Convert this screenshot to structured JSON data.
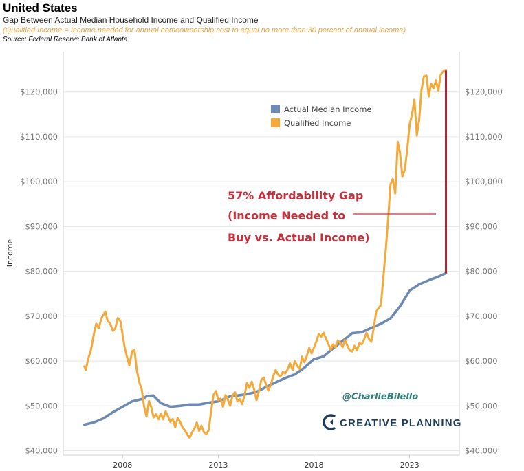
{
  "header": {
    "title": "United States",
    "subtitle": "Gap Between Actual Median Household Income and Qualified Income",
    "note": "(Qualified Income = Income needed for annual homeownership cost to equal no more than 30 percent of annual income)",
    "source": "Source: Federal Reserve Bank of Atlanta"
  },
  "annotation": {
    "line1": "57% Affordability Gap",
    "line2": "(Income Needed to",
    "line3": "Buy vs. Actual Income)"
  },
  "watermark": {
    "handle": "@CharlieBilello",
    "brand": "CREATIVE PLANNING"
  },
  "colors": {
    "median": "#6d8bb3",
    "qualified": "#f4a93c",
    "gap": "#b3202e",
    "annotation": "#c8303c"
  },
  "chart_data": {
    "type": "line",
    "ylabel": "Income",
    "ylim": [
      39000,
      129000
    ],
    "xlim": [
      2004.9,
      2025.6
    ],
    "y_ticks": [
      40000,
      50000,
      60000,
      70000,
      80000,
      90000,
      100000,
      110000,
      120000
    ],
    "y_tick_labels": [
      "$40,000",
      "$50,000",
      "$60,000",
      "$70,000",
      "$80,000",
      "$90,000",
      "$100,000",
      "$110,000",
      "$120,000"
    ],
    "x_ticks": [
      2008,
      2013,
      2018,
      2023
    ],
    "x_tick_labels": [
      "2008",
      "2013",
      "2018",
      "2023"
    ],
    "legend": {
      "position": "top-right"
    },
    "gap_marker": {
      "x": 2024.9,
      "y_low": 79600,
      "y_high": 124800
    },
    "series": [
      {
        "name": "Actual Median Income",
        "color": "#6d8bb3",
        "points": [
          [
            2006.0,
            45800
          ],
          [
            2006.5,
            46300
          ],
          [
            2007.0,
            47200
          ],
          [
            2007.5,
            48600
          ],
          [
            2008.0,
            49800
          ],
          [
            2008.5,
            51000
          ],
          [
            2009.0,
            51500
          ],
          [
            2009.3,
            52200
          ],
          [
            2009.6,
            52300
          ],
          [
            2010.0,
            50600
          ],
          [
            2010.5,
            49800
          ],
          [
            2011.0,
            50000
          ],
          [
            2011.5,
            50300
          ],
          [
            2012.0,
            50300
          ],
          [
            2012.5,
            50700
          ],
          [
            2013.0,
            51000
          ],
          [
            2013.3,
            51500
          ],
          [
            2013.6,
            52100
          ],
          [
            2014.0,
            52300
          ],
          [
            2014.5,
            52600
          ],
          [
            2015.0,
            53100
          ],
          [
            2015.5,
            54200
          ],
          [
            2016.0,
            55200
          ],
          [
            2016.5,
            56200
          ],
          [
            2017.0,
            57000
          ],
          [
            2017.5,
            58500
          ],
          [
            2018.0,
            60400
          ],
          [
            2018.5,
            61000
          ],
          [
            2019.0,
            62800
          ],
          [
            2019.5,
            64500
          ],
          [
            2020.0,
            66200
          ],
          [
            2020.5,
            66400
          ],
          [
            2021.0,
            67400
          ],
          [
            2021.5,
            68300
          ],
          [
            2022.0,
            69500
          ],
          [
            2022.5,
            72200
          ],
          [
            2023.0,
            75700
          ],
          [
            2023.5,
            77100
          ],
          [
            2024.0,
            78000
          ],
          [
            2024.5,
            78800
          ],
          [
            2024.9,
            79600
          ]
        ]
      },
      {
        "name": "Qualified Income",
        "color": "#f4a93c",
        "points": [
          [
            2006.0,
            58800
          ],
          [
            2006.08,
            58000
          ],
          [
            2006.2,
            60500
          ],
          [
            2006.35,
            62500
          ],
          [
            2006.5,
            66000
          ],
          [
            2006.62,
            68300
          ],
          [
            2006.75,
            67300
          ],
          [
            2006.9,
            69600
          ],
          [
            2007.0,
            70300
          ],
          [
            2007.1,
            71000
          ],
          [
            2007.2,
            69200
          ],
          [
            2007.35,
            68300
          ],
          [
            2007.5,
            66700
          ],
          [
            2007.62,
            67300
          ],
          [
            2007.75,
            69600
          ],
          [
            2007.9,
            68700
          ],
          [
            2008.0,
            65800
          ],
          [
            2008.12,
            62800
          ],
          [
            2008.25,
            60600
          ],
          [
            2008.35,
            59000
          ],
          [
            2008.5,
            62200
          ],
          [
            2008.62,
            62500
          ],
          [
            2008.75,
            57800
          ],
          [
            2008.88,
            55200
          ],
          [
            2009.0,
            53700
          ],
          [
            2009.12,
            50000
          ],
          [
            2009.25,
            47600
          ],
          [
            2009.38,
            51100
          ],
          [
            2009.5,
            49700
          ],
          [
            2009.62,
            47400
          ],
          [
            2009.75,
            48100
          ],
          [
            2009.88,
            47000
          ],
          [
            2010.0,
            48300
          ],
          [
            2010.12,
            47000
          ],
          [
            2010.25,
            48800
          ],
          [
            2010.38,
            47600
          ],
          [
            2010.5,
            46400
          ],
          [
            2010.62,
            47100
          ],
          [
            2010.75,
            45200
          ],
          [
            2010.88,
            47300
          ],
          [
            2011.0,
            46500
          ],
          [
            2011.12,
            45300
          ],
          [
            2011.25,
            44600
          ],
          [
            2011.38,
            43600
          ],
          [
            2011.5,
            42900
          ],
          [
            2011.62,
            44000
          ],
          [
            2011.75,
            44900
          ],
          [
            2011.88,
            46300
          ],
          [
            2012.0,
            44400
          ],
          [
            2012.12,
            45600
          ],
          [
            2012.25,
            44100
          ],
          [
            2012.38,
            43700
          ],
          [
            2012.5,
            44600
          ],
          [
            2012.62,
            48600
          ],
          [
            2012.75,
            52400
          ],
          [
            2012.88,
            53300
          ],
          [
            2013.0,
            51300
          ],
          [
            2013.12,
            51600
          ],
          [
            2013.25,
            49800
          ],
          [
            2013.38,
            52400
          ],
          [
            2013.5,
            51400
          ],
          [
            2013.62,
            50000
          ],
          [
            2013.75,
            52400
          ],
          [
            2013.88,
            53000
          ],
          [
            2014.0,
            51000
          ],
          [
            2014.12,
            51500
          ],
          [
            2014.25,
            50400
          ],
          [
            2014.38,
            52500
          ],
          [
            2014.5,
            55100
          ],
          [
            2014.62,
            54000
          ],
          [
            2014.75,
            55400
          ],
          [
            2014.88,
            53600
          ],
          [
            2015.0,
            51300
          ],
          [
            2015.12,
            53200
          ],
          [
            2015.25,
            55800
          ],
          [
            2015.38,
            56300
          ],
          [
            2015.5,
            54600
          ],
          [
            2015.62,
            53400
          ],
          [
            2015.75,
            54800
          ],
          [
            2015.88,
            56700
          ],
          [
            2016.0,
            58000
          ],
          [
            2016.12,
            57000
          ],
          [
            2016.25,
            56500
          ],
          [
            2016.38,
            57600
          ],
          [
            2016.5,
            57200
          ],
          [
            2016.62,
            58100
          ],
          [
            2016.75,
            59500
          ],
          [
            2016.88,
            58000
          ],
          [
            2017.0,
            60000
          ],
          [
            2017.12,
            59000
          ],
          [
            2017.25,
            58200
          ],
          [
            2017.38,
            61000
          ],
          [
            2017.5,
            59700
          ],
          [
            2017.62,
            61000
          ],
          [
            2017.75,
            62900
          ],
          [
            2017.88,
            61700
          ],
          [
            2018.0,
            63000
          ],
          [
            2018.12,
            64300
          ],
          [
            2018.25,
            66000
          ],
          [
            2018.38,
            65400
          ],
          [
            2018.5,
            66300
          ],
          [
            2018.62,
            65100
          ],
          [
            2018.75,
            63800
          ],
          [
            2018.88,
            62500
          ],
          [
            2019.0,
            63700
          ],
          [
            2019.12,
            63000
          ],
          [
            2019.25,
            64600
          ],
          [
            2019.38,
            64000
          ],
          [
            2019.5,
            63100
          ],
          [
            2019.62,
            64700
          ],
          [
            2019.75,
            63400
          ],
          [
            2019.88,
            62300
          ],
          [
            2020.0,
            62100
          ],
          [
            2020.12,
            63400
          ],
          [
            2020.25,
            62400
          ],
          [
            2020.38,
            64000
          ],
          [
            2020.5,
            63700
          ],
          [
            2020.62,
            64800
          ],
          [
            2020.75,
            66300
          ],
          [
            2020.88,
            64900
          ],
          [
            2021.0,
            64300
          ],
          [
            2021.12,
            67200
          ],
          [
            2021.25,
            71000
          ],
          [
            2021.38,
            71800
          ],
          [
            2021.5,
            72500
          ],
          [
            2021.62,
            78300
          ],
          [
            2021.75,
            84700
          ],
          [
            2021.88,
            91800
          ],
          [
            2022.0,
            99400
          ],
          [
            2022.12,
            100600
          ],
          [
            2022.25,
            97400
          ],
          [
            2022.38,
            108900
          ],
          [
            2022.5,
            106400
          ],
          [
            2022.62,
            101100
          ],
          [
            2022.75,
            102700
          ],
          [
            2022.88,
            107300
          ],
          [
            2023.0,
            112800
          ],
          [
            2023.12,
            114900
          ],
          [
            2023.25,
            118300
          ],
          [
            2023.38,
            110300
          ],
          [
            2023.5,
            113900
          ],
          [
            2023.62,
            120400
          ],
          [
            2023.75,
            123500
          ],
          [
            2023.88,
            123700
          ],
          [
            2024.0,
            119000
          ],
          [
            2024.12,
            121900
          ],
          [
            2024.25,
            120800
          ],
          [
            2024.38,
            122600
          ],
          [
            2024.5,
            120200
          ],
          [
            2024.62,
            123800
          ],
          [
            2024.75,
            124600
          ],
          [
            2024.9,
            124800
          ]
        ]
      }
    ]
  }
}
